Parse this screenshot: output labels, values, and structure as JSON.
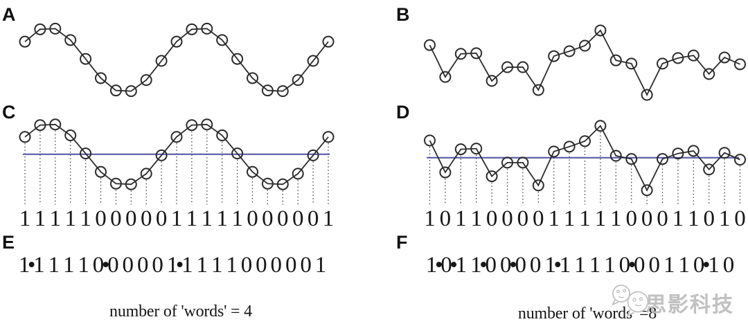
{
  "figure": {
    "watermark": {
      "text": "思影科技",
      "icon": "chat-bubbles-icon"
    }
  },
  "colors": {
    "background": "#ffffff",
    "signal": "#2b2b2b",
    "threshold_line": "#5a5aaa",
    "dotted_line": "#3a3a3a",
    "digit_text": "#171717",
    "watermark": "#c5c5c5"
  },
  "chart_data": [
    {
      "id": "periodic-signal-left",
      "type": "line",
      "panels": {
        "raw": "A",
        "thresholded": "C",
        "sequence": "E"
      },
      "n_points": 21,
      "marker": "open-circle",
      "grid": false,
      "legend_position": "none",
      "values": [
        0.56,
        0.94,
        0.96,
        0.61,
        0.03,
        -0.56,
        -0.94,
        -0.96,
        -0.62,
        -0.03,
        0.56,
        0.94,
        0.96,
        0.61,
        0.03,
        -0.56,
        -0.94,
        -0.96,
        -0.62,
        -0.03,
        0.56
      ],
      "threshold": 0,
      "binary_digits": [
        "1",
        "1",
        "1",
        "1",
        "1",
        "0",
        "0",
        "0",
        "0",
        "0",
        "1",
        "1",
        "1",
        "1",
        "1",
        "0",
        "0",
        "0",
        "0",
        "0",
        "1"
      ],
      "word_separator_after": [
        1,
        6,
        11
      ],
      "caption": "number of 'words' = 4"
    },
    {
      "id": "irregular-signal-right",
      "type": "line",
      "panels": {
        "raw": "B",
        "thresholded": "D",
        "sequence": "F"
      },
      "n_points": 21,
      "marker": "open-circle",
      "grid": false,
      "legend_position": "none",
      "values": [
        0.53,
        -0.45,
        0.26,
        0.28,
        -0.57,
        -0.15,
        -0.15,
        -0.85,
        0.19,
        0.34,
        0.51,
        0.98,
        0.06,
        -0.04,
        -1.0,
        -0.04,
        0.13,
        0.21,
        -0.36,
        0.15,
        -0.06
      ],
      "threshold": 0,
      "binary_digits": [
        "1",
        "0",
        "1",
        "1",
        "0",
        "0",
        "0",
        "0",
        "1",
        "1",
        "1",
        "1",
        "1",
        "0",
        "0",
        "0",
        "1",
        "1",
        "0",
        "1",
        "0"
      ],
      "word_separator_after": [
        1,
        2,
        4,
        6,
        9,
        14,
        19
      ],
      "caption": "number of 'words' =8"
    }
  ]
}
